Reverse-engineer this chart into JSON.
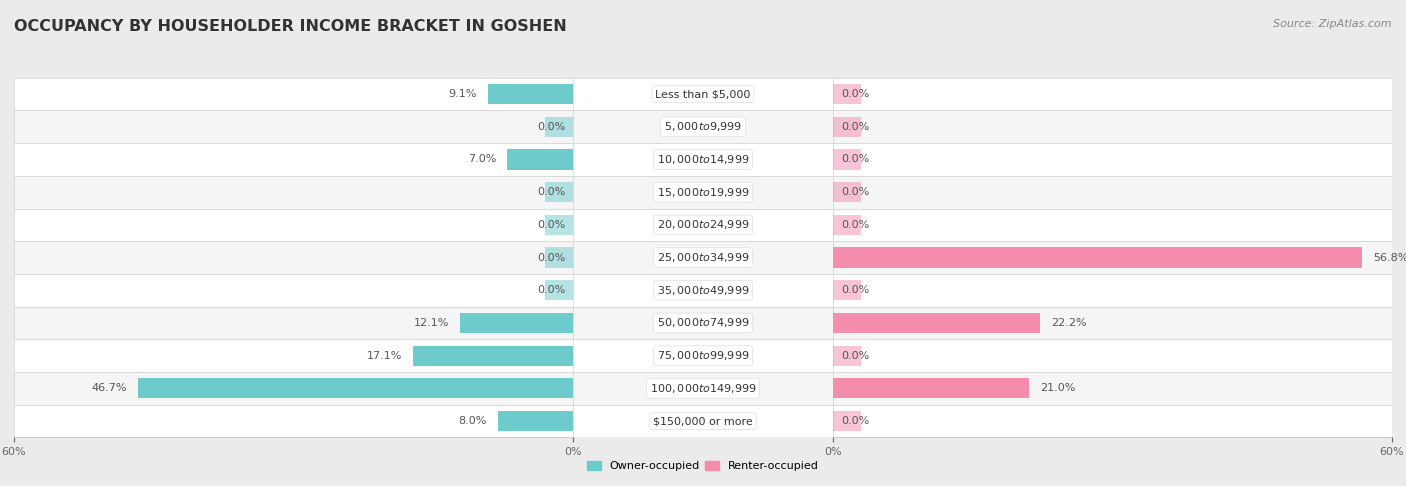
{
  "title": "OCCUPANCY BY HOUSEHOLDER INCOME BRACKET IN GOSHEN",
  "source": "Source: ZipAtlas.com",
  "categories": [
    "Less than $5,000",
    "$5,000 to $9,999",
    "$10,000 to $14,999",
    "$15,000 to $19,999",
    "$20,000 to $24,999",
    "$25,000 to $34,999",
    "$35,000 to $49,999",
    "$50,000 to $74,999",
    "$75,000 to $99,999",
    "$100,000 to $149,999",
    "$150,000 or more"
  ],
  "owner_values": [
    9.1,
    0.0,
    7.0,
    0.0,
    0.0,
    0.0,
    0.0,
    12.1,
    17.1,
    46.7,
    8.0
  ],
  "renter_values": [
    0.0,
    0.0,
    0.0,
    0.0,
    0.0,
    56.8,
    0.0,
    22.2,
    0.0,
    21.0,
    0.0
  ],
  "owner_color": "#6dcbcc",
  "renter_color": "#f48cac",
  "owner_color_dark": "#3aabac",
  "background_color": "#ebebeb",
  "row_bg_color": "#ffffff",
  "row_alt_color": "#f5f5f5",
  "axis_limit": 60.0,
  "bar_height": 0.62,
  "title_fontsize": 11.5,
  "label_fontsize": 8,
  "category_fontsize": 8,
  "source_fontsize": 8,
  "legend_fontsize": 8
}
